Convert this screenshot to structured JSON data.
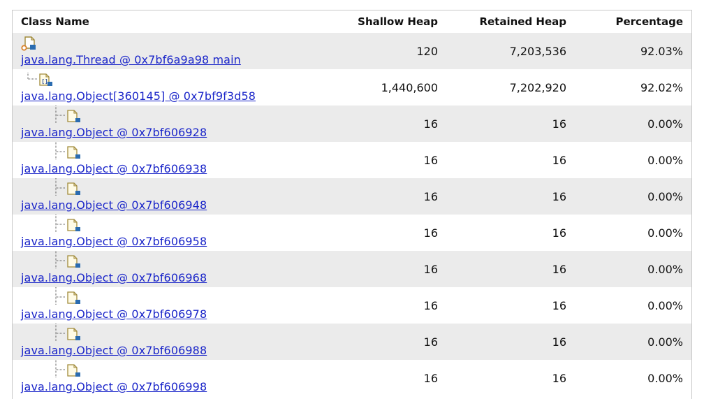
{
  "columns": {
    "class_name": "Class Name",
    "shallow_heap": "Shallow Heap",
    "retained_heap": "Retained Heap",
    "percentage": "Percentage"
  },
  "rows": [
    {
      "name": "java.lang.Thread @ 0x7bf6a9a98 main",
      "shallow": "120",
      "retained": "7,203,536",
      "percentage": "92.03%",
      "icon": "thread-object-icon",
      "depth": 0
    },
    {
      "name": "java.lang.Object[360145] @ 0x7bf9f3d58",
      "shallow": "1,440,600",
      "retained": "7,202,920",
      "percentage": "92.02%",
      "icon": "array-object-icon",
      "depth": 1
    },
    {
      "name": "java.lang.Object @ 0x7bf606928",
      "shallow": "16",
      "retained": "16",
      "percentage": "0.00%",
      "icon": "object-icon",
      "depth": 2
    },
    {
      "name": "java.lang.Object @ 0x7bf606938",
      "shallow": "16",
      "retained": "16",
      "percentage": "0.00%",
      "icon": "object-icon",
      "depth": 2
    },
    {
      "name": "java.lang.Object @ 0x7bf606948",
      "shallow": "16",
      "retained": "16",
      "percentage": "0.00%",
      "icon": "object-icon",
      "depth": 2
    },
    {
      "name": "java.lang.Object @ 0x7bf606958",
      "shallow": "16",
      "retained": "16",
      "percentage": "0.00%",
      "icon": "object-icon",
      "depth": 2
    },
    {
      "name": "java.lang.Object @ 0x7bf606968",
      "shallow": "16",
      "retained": "16",
      "percentage": "0.00%",
      "icon": "object-icon",
      "depth": 2
    },
    {
      "name": "java.lang.Object @ 0x7bf606978",
      "shallow": "16",
      "retained": "16",
      "percentage": "0.00%",
      "icon": "object-icon",
      "depth": 2
    },
    {
      "name": "java.lang.Object @ 0x7bf606988",
      "shallow": "16",
      "retained": "16",
      "percentage": "0.00%",
      "icon": "object-icon",
      "depth": 2
    },
    {
      "name": "java.lang.Object @ 0x7bf606998",
      "shallow": "16",
      "retained": "16",
      "percentage": "0.00%",
      "icon": "object-icon",
      "depth": 2
    }
  ],
  "colors": {
    "link": "#1a25c9",
    "row_alt": "#ebebeb",
    "icon_accent": "#2b6cb0",
    "thread_accent": "#d9822b"
  }
}
